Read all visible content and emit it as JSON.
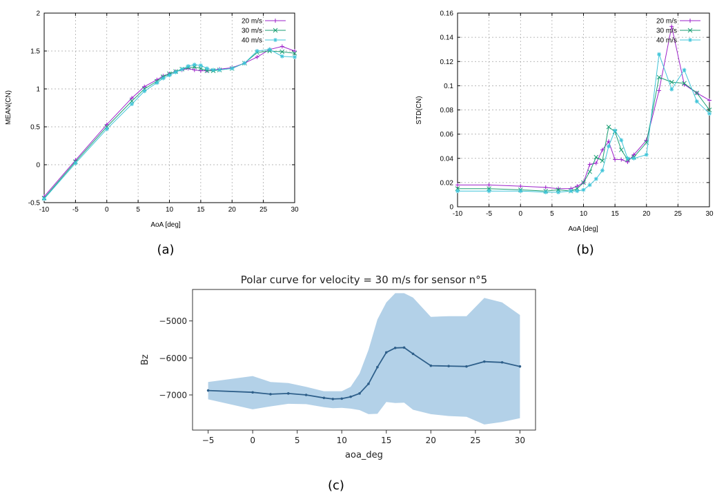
{
  "chart_data": [
    {
      "type": "line",
      "panel": "a",
      "caption": "(a)",
      "xlabel": "AoA [deg]",
      "ylabel": "MEAN(CN)",
      "xlim": [
        -10,
        30
      ],
      "ylim": [
        -0.5,
        2
      ],
      "xticks": [
        -10,
        -5,
        0,
        5,
        10,
        15,
        20,
        25,
        30
      ],
      "yticks": [
        -0.5,
        0,
        0.5,
        1,
        1.5,
        2
      ],
      "ytick_labels": [
        "-0.5",
        "0",
        "0.5",
        "1",
        "1.5",
        "2"
      ],
      "grid": true,
      "legend_position": "top-right",
      "series": [
        {
          "name": "20 m/s",
          "color": "#9b1fc9",
          "marker": "plus",
          "x": [
            -10,
            -5,
            0,
            4,
            6,
            8,
            9,
            10,
            11,
            12,
            13,
            14,
            15,
            16,
            17,
            18,
            20,
            22,
            24,
            26,
            28,
            30
          ],
          "y": [
            -0.42,
            0.06,
            0.53,
            0.88,
            1.03,
            1.12,
            1.17,
            1.2,
            1.23,
            1.25,
            1.27,
            1.25,
            1.24,
            1.24,
            1.25,
            1.26,
            1.28,
            1.34,
            1.42,
            1.52,
            1.56,
            1.5
          ]
        },
        {
          "name": "30 m/s",
          "color": "#1a9e73",
          "marker": "cross",
          "x": [
            -10,
            -5,
            0,
            4,
            6,
            8,
            9,
            10,
            11,
            12,
            13,
            14,
            15,
            16,
            17,
            18,
            20,
            22,
            24,
            26,
            28,
            30
          ],
          "y": [
            -0.44,
            0.04,
            0.5,
            0.84,
            1.0,
            1.1,
            1.16,
            1.2,
            1.23,
            1.26,
            1.28,
            1.29,
            1.27,
            1.24,
            1.24,
            1.25,
            1.27,
            1.34,
            1.48,
            1.5,
            1.49,
            1.47
          ]
        },
        {
          "name": "40 m/s",
          "color": "#3fc4d8",
          "marker": "star",
          "x": [
            -10,
            -5,
            0,
            4,
            6,
            8,
            9,
            10,
            11,
            12,
            13,
            14,
            15,
            16,
            17,
            18,
            20,
            22,
            24,
            26,
            28,
            30
          ],
          "y": [
            -0.45,
            0.02,
            0.47,
            0.8,
            0.97,
            1.08,
            1.14,
            1.18,
            1.22,
            1.26,
            1.3,
            1.32,
            1.31,
            1.27,
            1.25,
            1.25,
            1.27,
            1.34,
            1.5,
            1.52,
            1.43,
            1.42
          ]
        }
      ]
    },
    {
      "type": "line",
      "panel": "b",
      "caption": "(b)",
      "xlabel": "AoA [deg]",
      "ylabel": "STD(CN)",
      "xlim": [
        -10,
        30
      ],
      "ylim": [
        0,
        0.16
      ],
      "xticks": [
        -10,
        -5,
        0,
        5,
        10,
        15,
        20,
        25,
        30
      ],
      "yticks": [
        0,
        0.02,
        0.04,
        0.06,
        0.08,
        0.1,
        0.12,
        0.14,
        0.16
      ],
      "ytick_labels": [
        "0",
        "0.02",
        "0.04",
        "0.06",
        "0.08",
        "0.1",
        "0.12",
        "0.14",
        "0.16"
      ],
      "grid": true,
      "legend_position": "top-right",
      "series": [
        {
          "name": "20 m/s",
          "color": "#9b1fc9",
          "marker": "plus",
          "x": [
            -10,
            -5,
            0,
            4,
            6,
            8,
            9,
            10,
            11,
            12,
            13,
            14,
            15,
            16,
            17,
            18,
            20,
            22,
            24,
            26,
            28,
            30
          ],
          "y": [
            0.018,
            0.018,
            0.017,
            0.016,
            0.015,
            0.015,
            0.017,
            0.02,
            0.035,
            0.036,
            0.047,
            0.054,
            0.039,
            0.039,
            0.037,
            0.043,
            0.055,
            0.096,
            0.149,
            0.101,
            0.094,
            0.088
          ]
        },
        {
          "name": "30 m/s",
          "color": "#1a9e73",
          "marker": "cross",
          "x": [
            -10,
            -5,
            0,
            4,
            6,
            8,
            9,
            10,
            11,
            12,
            13,
            14,
            15,
            16,
            17,
            18,
            20,
            22,
            24,
            26,
            28,
            30
          ],
          "y": [
            0.015,
            0.015,
            0.014,
            0.013,
            0.014,
            0.013,
            0.015,
            0.02,
            0.029,
            0.041,
            0.038,
            0.066,
            0.062,
            0.047,
            0.039,
            0.041,
            0.053,
            0.107,
            0.103,
            0.102,
            0.094,
            0.08
          ]
        },
        {
          "name": "40 m/s",
          "color": "#3fc4d8",
          "marker": "star",
          "x": [
            -10,
            -5,
            0,
            4,
            6,
            8,
            9,
            10,
            11,
            12,
            13,
            14,
            15,
            16,
            17,
            18,
            20,
            22,
            24,
            26,
            28,
            30
          ],
          "y": [
            0.013,
            0.013,
            0.013,
            0.012,
            0.012,
            0.013,
            0.013,
            0.014,
            0.018,
            0.023,
            0.03,
            0.05,
            0.063,
            0.055,
            0.04,
            0.04,
            0.043,
            0.126,
            0.097,
            0.113,
            0.087,
            0.077
          ]
        }
      ]
    },
    {
      "type": "line",
      "panel": "c",
      "caption": "(c)",
      "title": "Polar curve for velocity = 30 m/s for sensor n°5",
      "xlabel": "aoa_deg",
      "ylabel": "Bz",
      "xlim": [
        -6.75,
        31.75
      ],
      "ylim": [
        -7950,
        -4150
      ],
      "xticks": [
        -5,
        0,
        5,
        10,
        15,
        20,
        25,
        30
      ],
      "yticks": [
        -7000,
        -6000,
        -5000
      ],
      "ytick_labels": [
        "−7000",
        "−6000",
        "−5000"
      ],
      "xtick_labels": [
        "−5",
        "0",
        "5",
        "10",
        "15",
        "20",
        "25",
        "30"
      ],
      "grid": false,
      "line_color": "#2e5f8a",
      "band_color": "#b3d1e8",
      "x": [
        -5,
        0,
        2,
        4,
        6,
        8,
        9,
        10,
        11,
        12,
        13,
        14,
        15,
        16,
        17,
        18,
        20,
        22,
        24,
        26,
        28,
        30
      ],
      "y": [
        -6880,
        -6930,
        -6980,
        -6960,
        -7000,
        -7080,
        -7110,
        -7100,
        -7050,
        -6960,
        -6700,
        -6250,
        -5850,
        -5730,
        -5720,
        -5890,
        -6210,
        -6220,
        -6230,
        -6100,
        -6120,
        -6230
      ],
      "upper": [
        -6650,
        -6490,
        -6650,
        -6680,
        -6780,
        -6900,
        -6900,
        -6900,
        -6780,
        -6420,
        -5780,
        -4960,
        -4500,
        -4250,
        -4250,
        -4370,
        -4890,
        -4870,
        -4870,
        -4380,
        -4500,
        -4840
      ],
      "lower": [
        -7120,
        -7390,
        -7310,
        -7240,
        -7250,
        -7330,
        -7360,
        -7350,
        -7370,
        -7410,
        -7520,
        -7510,
        -7190,
        -7220,
        -7210,
        -7400,
        -7520,
        -7570,
        -7590,
        -7800,
        -7730,
        -7630
      ]
    }
  ]
}
